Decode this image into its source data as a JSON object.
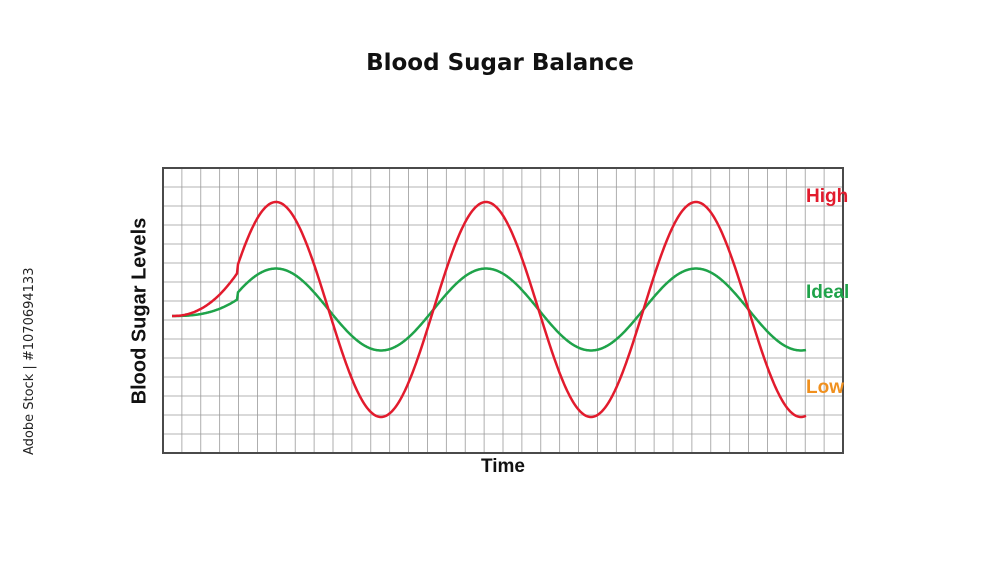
{
  "chart_data": {
    "type": "line",
    "title": "Blood Sugar Balance",
    "xlabel": "Time",
    "ylabel": "Blood Sugar Levels",
    "grid": true,
    "x_ticks_labeled": false,
    "y_ticks_labeled": false,
    "zones": [
      {
        "label": "High",
        "color": "#e21b2d"
      },
      {
        "label": "Ideal",
        "color": "#1fa34a"
      },
      {
        "label": "Low",
        "color": "#f0901e"
      }
    ],
    "series": [
      {
        "color": "#e21b2d",
        "shape": "oscillation with three peaks reaching the High level and dipping to the Low level"
      },
      {
        "color": "#1fa34a",
        "shape": "gentle oscillation in phase with the red curve, staying near the Ideal level"
      }
    ]
  },
  "watermark": "Adobe Stock | #1070694133"
}
